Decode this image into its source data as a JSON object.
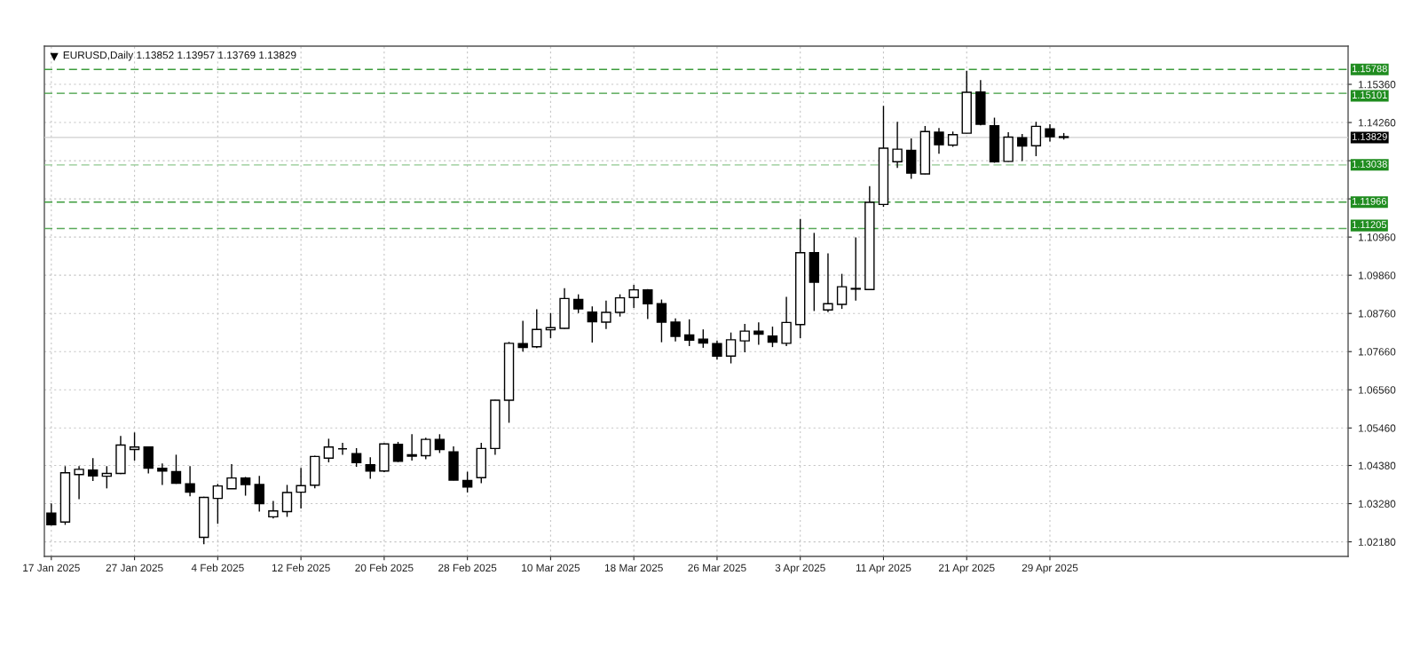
{
  "chart_data": {
    "type": "candlestick",
    "title": "EURUSD,Daily 1.13852 1.13957 1.13769 1.13829",
    "color": "#000000",
    "categories": [
      "17 Jan 2025",
      null,
      null,
      null,
      null,
      null,
      "27 Jan 2025",
      null,
      null,
      null,
      null,
      null,
      "4 Feb 2025",
      null,
      null,
      null,
      null,
      null,
      "12 Feb 2025",
      null,
      null,
      null,
      null,
      null,
      "20 Feb 2025",
      null,
      null,
      null,
      null,
      null,
      "28 Feb 2025",
      null,
      null,
      null,
      null,
      null,
      "10 Mar 2025",
      null,
      null,
      null,
      null,
      null,
      "18 Mar 2025",
      null,
      null,
      null,
      null,
      null,
      "26 Mar 2025",
      null,
      null,
      null,
      null,
      null,
      "3 Apr 2025",
      null,
      null,
      null,
      null,
      null,
      "11 Apr 2025",
      null,
      null,
      null,
      null,
      null,
      "21 Apr 2025",
      null,
      null,
      null,
      null,
      null,
      "29 Apr 2025",
      null,
      null,
      null,
      null,
      null,
      null,
      null,
      null,
      null,
      null,
      null,
      null,
      null,
      null,
      null,
      null,
      null,
      null,
      null,
      null,
      null
    ],
    "ohlc": [
      [
        1.0301,
        1.0329,
        1.0265,
        1.0267
      ],
      [
        1.0275,
        1.0436,
        1.0267,
        1.0417
      ],
      [
        1.0412,
        1.0436,
        1.0341,
        1.0427
      ],
      [
        1.0425,
        1.0459,
        1.0393,
        1.0408
      ],
      [
        1.0407,
        1.0436,
        1.0372,
        1.0415
      ],
      [
        1.0415,
        1.0523,
        1.0413,
        1.0497
      ],
      [
        1.0484,
        1.0533,
        1.0452,
        1.0491
      ],
      [
        1.0491,
        1.0493,
        1.0415,
        1.043
      ],
      [
        1.043,
        1.0444,
        1.0382,
        1.0422
      ],
      [
        1.042,
        1.0469,
        1.0385,
        1.0387
      ],
      [
        1.0385,
        1.0436,
        1.0349,
        1.0361
      ],
      [
        1.0231,
        1.0348,
        1.0211,
        1.0346
      ],
      [
        1.0343,
        1.0385,
        1.027,
        1.0379
      ],
      [
        1.0371,
        1.0442,
        1.037,
        1.0402
      ],
      [
        1.0402,
        1.0405,
        1.0351,
        1.0383
      ],
      [
        1.0383,
        1.0408,
        1.0305,
        1.0328
      ],
      [
        1.029,
        1.0336,
        1.0285,
        1.0307
      ],
      [
        1.0305,
        1.0382,
        1.029,
        1.036
      ],
      [
        1.0361,
        1.0431,
        1.0314,
        1.038
      ],
      [
        1.0381,
        1.0466,
        1.0372,
        1.0464
      ],
      [
        1.0459,
        1.0515,
        1.0447,
        1.0491
      ],
      [
        1.0486,
        1.0503,
        1.0469,
        1.0486
      ],
      [
        1.0472,
        1.0488,
        1.0434,
        1.0446
      ],
      [
        1.044,
        1.0462,
        1.04,
        1.0422
      ],
      [
        1.0422,
        1.0502,
        1.0419,
        1.05
      ],
      [
        1.0499,
        1.0506,
        1.0448,
        1.045
      ],
      [
        1.0469,
        1.0528,
        1.0452,
        1.0465
      ],
      [
        1.0466,
        1.0518,
        1.0456,
        1.0513
      ],
      [
        1.0513,
        1.0528,
        1.0474,
        1.0484
      ],
      [
        1.0477,
        1.0493,
        1.0395,
        1.0396
      ],
      [
        1.0395,
        1.042,
        1.036,
        1.0376
      ],
      [
        1.0403,
        1.0503,
        1.0387,
        1.0487
      ],
      [
        1.0487,
        1.0627,
        1.0469,
        1.0626
      ],
      [
        1.0626,
        1.0794,
        1.0561,
        1.079
      ],
      [
        1.0789,
        1.0855,
        1.0766,
        1.0778
      ],
      [
        1.078,
        1.0888,
        1.0776,
        1.083
      ],
      [
        1.0829,
        1.0877,
        1.0805,
        1.0835
      ],
      [
        1.0833,
        1.0949,
        1.0832,
        1.0919
      ],
      [
        1.0916,
        1.0931,
        1.0877,
        1.0889
      ],
      [
        1.088,
        1.0896,
        1.0792,
        1.0852
      ],
      [
        1.0851,
        1.0913,
        1.0831,
        1.0879
      ],
      [
        1.0879,
        1.0931,
        1.0867,
        1.0921
      ],
      [
        1.0922,
        1.0958,
        1.0892,
        1.0944
      ],
      [
        1.0944,
        1.0946,
        1.086,
        1.0904
      ],
      [
        1.0904,
        1.0916,
        1.0793,
        1.0851
      ],
      [
        1.0851,
        1.0862,
        1.0795,
        1.081
      ],
      [
        1.0814,
        1.0859,
        1.0782,
        1.0799
      ],
      [
        1.0802,
        1.083,
        1.0777,
        1.0791
      ],
      [
        1.0789,
        1.0798,
        1.0743,
        1.0753
      ],
      [
        1.0753,
        1.0821,
        1.0732,
        1.08
      ],
      [
        1.0797,
        1.0846,
        1.0764,
        1.0825
      ],
      [
        1.0825,
        1.085,
        1.0786,
        1.0816
      ],
      [
        1.0811,
        1.0838,
        1.0779,
        1.0793
      ],
      [
        1.079,
        1.0924,
        1.0782,
        1.085
      ],
      [
        1.0844,
        1.1148,
        1.0805,
        1.1051
      ],
      [
        1.1051,
        1.1108,
        1.0883,
        1.0966
      ],
      [
        1.0886,
        1.1049,
        1.088,
        1.0904
      ],
      [
        1.0902,
        1.099,
        1.0889,
        1.0953
      ],
      [
        1.0948,
        1.1095,
        1.0913,
        1.0946
      ],
      [
        1.0945,
        1.1243,
        1.0944,
        1.1196
      ],
      [
        1.119,
        1.1474,
        1.1183,
        1.1352
      ],
      [
        1.1313,
        1.1428,
        1.1295,
        1.1349
      ],
      [
        1.1346,
        1.138,
        1.1264,
        1.128
      ],
      [
        1.1278,
        1.1416,
        1.1277,
        1.14
      ],
      [
        1.1398,
        1.141,
        1.1336,
        1.1362
      ],
      [
        1.1361,
        1.14,
        1.1356,
        1.1391
      ],
      [
        1.1395,
        1.1575,
        1.1394,
        1.1513
      ],
      [
        1.1514,
        1.1548,
        1.1418,
        1.1421
      ],
      [
        1.1417,
        1.144,
        1.131,
        1.1313
      ],
      [
        1.1314,
        1.1398,
        1.1313,
        1.1384
      ],
      [
        1.1382,
        1.1393,
        1.1315,
        1.1358
      ],
      [
        1.1359,
        1.1428,
        1.1329,
        1.1415
      ],
      [
        1.1408,
        1.1421,
        1.1371,
        1.1385
      ],
      [
        1.13852,
        1.13957,
        1.13769,
        1.13829
      ],
      null,
      null,
      null,
      null,
      null,
      null,
      null,
      null,
      null,
      null,
      null,
      null,
      null,
      null,
      null,
      null,
      null,
      null,
      null,
      null
    ],
    "ylim": [
      1.0176,
      1.1646
    ],
    "yticks": [
      {
        "value": 1.0218,
        "label": "1.02180"
      },
      {
        "value": 1.0328,
        "label": "1.03280"
      },
      {
        "value": 1.0438,
        "label": "1.04380"
      },
      {
        "value": 1.0546,
        "label": "1.05460"
      },
      {
        "value": 1.0656,
        "label": "1.06560"
      },
      {
        "value": 1.0766,
        "label": "1.07660"
      },
      {
        "value": 1.0876,
        "label": "1.08760"
      },
      {
        "value": 1.0986,
        "label": "1.09860"
      },
      {
        "value": 1.1096,
        "label": "1.10960"
      },
      {
        "value": 1.1206,
        "label": null
      },
      {
        "value": 1.1316,
        "label": null
      },
      {
        "value": 1.1426,
        "label": "1.14260"
      },
      {
        "value": 1.1536,
        "label": "1.15360"
      }
    ],
    "grid": true,
    "ref_lines": [
      {
        "axis": "y",
        "value": 1.15788,
        "label": "1.15788",
        "color": "#3c9c3c",
        "line_style": "dashed"
      },
      {
        "axis": "y",
        "value": 1.15101,
        "label": "1.15101",
        "color": "#3c9c3c",
        "line_style": "dashed"
      },
      {
        "axis": "y",
        "value": 1.13829,
        "label": "1.13829",
        "color": "#cfcfcf",
        "line_style": "solid"
      },
      {
        "axis": "y",
        "value": 1.13038,
        "label": "1.13038",
        "color": "#8ec88e",
        "line_style": "dashed"
      },
      {
        "axis": "y",
        "value": 1.11966,
        "label": "1.11966",
        "color": "#3c9c3c",
        "line_style": "dashed"
      },
      {
        "axis": "y",
        "value": 1.11205,
        "label": "1.11205",
        "color": "#5aaa5a",
        "line_style": "dashed"
      }
    ]
  }
}
